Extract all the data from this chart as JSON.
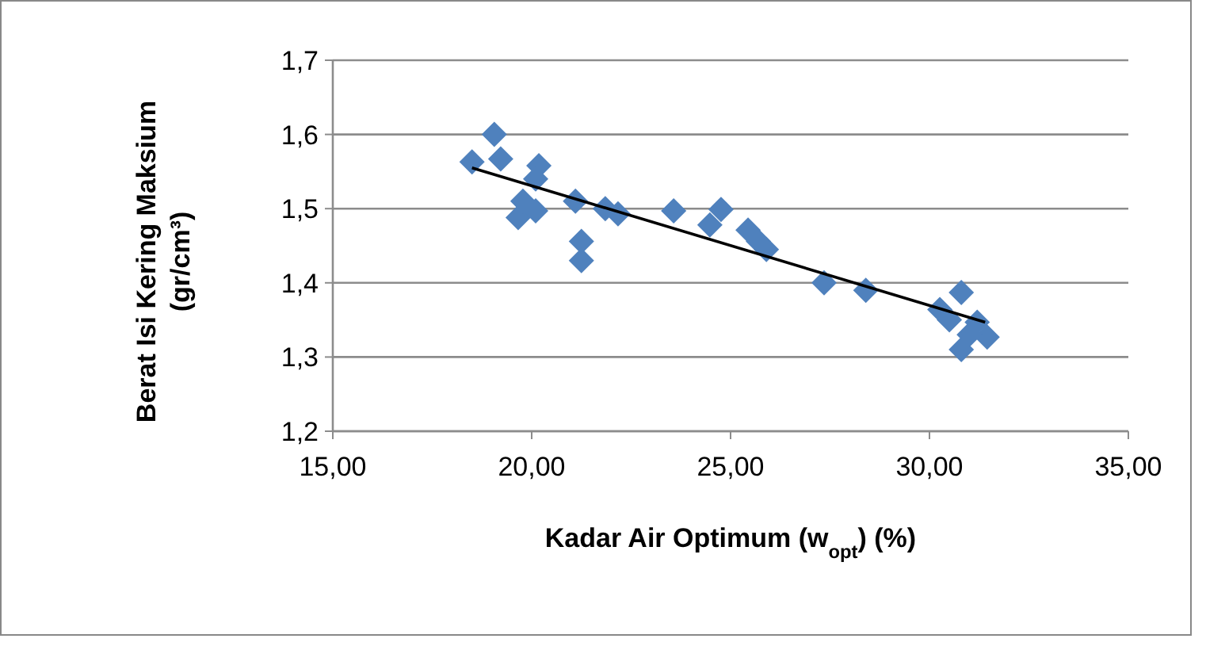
{
  "chart_data": {
    "type": "scatter",
    "xlabel": "Kadar Air Optimum (w$_{opt}$) (%)",
    "ylabel": "Berat Isi Kering Maksium (gr/cm³)",
    "xlim": [
      15,
      35
    ],
    "xticks": [
      {
        "value": 15,
        "label": "15,00"
      },
      {
        "value": 20,
        "label": "20,00"
      },
      {
        "value": 25,
        "label": "25,00"
      },
      {
        "value": 30,
        "label": "30,00"
      },
      {
        "value": 35,
        "label": "35,00"
      }
    ],
    "ylim": [
      1.2,
      1.7
    ],
    "yticks": [
      {
        "value": 1.2,
        "label": "1,2"
      },
      {
        "value": 1.3,
        "label": "1,3"
      },
      {
        "value": 1.4,
        "label": "1,4"
      },
      {
        "value": 1.5,
        "label": "1,5"
      },
      {
        "value": 1.6,
        "label": "1,6"
      },
      {
        "value": 1.7,
        "label": "1,7"
      }
    ],
    "grid": "y",
    "marker": "diamond",
    "series": [
      {
        "type": "scatter",
        "color": "#4f81bd",
        "x": [
          18.5,
          19.06,
          19.22,
          20.18,
          20.1,
          19.66,
          20.1,
          19.78,
          21.1,
          21.25,
          21.25,
          21.85,
          22.17,
          23.57,
          24.76,
          24.48,
          25.44,
          25.9,
          25.7,
          27.35,
          28.4,
          30.26,
          30.8,
          30.5,
          31.2,
          31.45,
          30.8,
          31.0
        ],
        "values": [
          1.563,
          1.6,
          1.567,
          1.558,
          1.54,
          1.488,
          1.497,
          1.51,
          1.51,
          1.456,
          1.43,
          1.5,
          1.493,
          1.497,
          1.499,
          1.478,
          1.471,
          1.445,
          1.456,
          1.4,
          1.39,
          1.364,
          1.387,
          1.35,
          1.347,
          1.327,
          1.31,
          1.33
        ]
      },
      {
        "type": "line",
        "color": "#000000",
        "marker": "none",
        "x": [
          18.5,
          31.4
        ],
        "values": [
          1.555,
          1.347
        ]
      }
    ]
  }
}
